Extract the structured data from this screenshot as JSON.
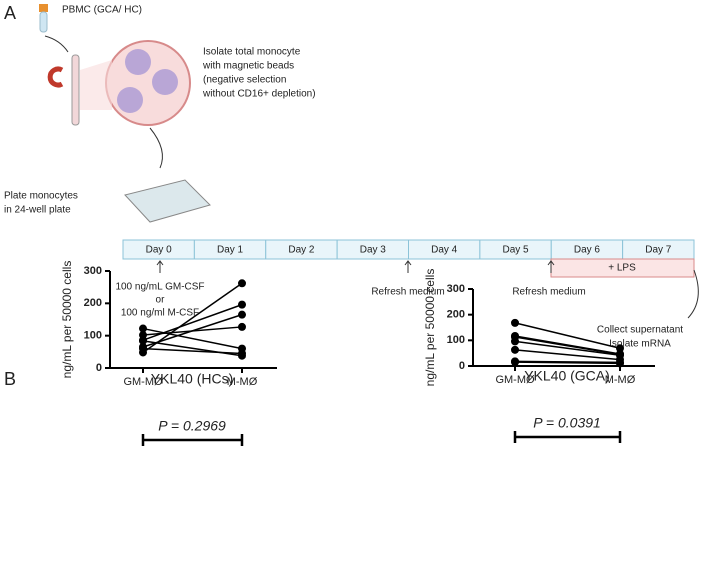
{
  "panel_labels": [
    "A",
    "B"
  ],
  "diagram": {
    "pbmc": "PBMC (GCA/ HC)",
    "isolate": [
      "Isolate total monocyte",
      "with magnetic beads",
      "(negative selection",
      "without CD16+ depletion)"
    ],
    "plate": [
      "Plate monocytes",
      "in 24-well plate"
    ],
    "days": [
      "Day 0",
      "Day 1",
      "Day 2",
      "Day 3",
      "Day 4",
      "Day 5",
      "Day 6",
      "Day 7"
    ],
    "lps": "+ LPS",
    "day0_note": [
      "100 ng/mL GM-CSF",
      "or",
      "100 ng/ml M-CSF"
    ],
    "refresh": [
      "Refresh medium",
      "Refresh medium"
    ],
    "collect": [
      "Collect supernatant",
      "Isolate mRNA"
    ]
  },
  "chart_data": [
    {
      "type": "paired",
      "title": "YKL40 (HCs)",
      "annotation": "P = 0.2969",
      "y_label": "ng/mL per 50000 cells",
      "categories": [
        "GM-MØ",
        "M-MØ"
      ],
      "ylim": [
        0,
        300
      ],
      "yticks": [
        0,
        100,
        200,
        300
      ],
      "color": "#000000",
      "series": [
        {
          "values": [
            48,
            262
          ]
        },
        {
          "values": [
            86,
            196
          ]
        },
        {
          "values": [
            65,
            165
          ]
        },
        {
          "values": [
            102,
            127
          ]
        },
        {
          "values": [
            122,
            60
          ]
        },
        {
          "values": [
            84,
            38
          ]
        },
        {
          "values": [
            60,
            45
          ]
        }
      ]
    },
    {
      "type": "paired",
      "title": "YKL40 (GCA)",
      "annotation": "P = 0.0391",
      "y_label": "ng/mL per 50000 cells",
      "categories": [
        "GM-MØ",
        "M-MØ"
      ],
      "ylim": [
        0,
        300
      ],
      "yticks": [
        0,
        100,
        200,
        300
      ],
      "color": "#000000",
      "series": [
        {
          "values": [
            168,
            69
          ]
        },
        {
          "values": [
            117,
            47
          ]
        },
        {
          "values": [
            113,
            45
          ]
        },
        {
          "values": [
            96,
            42
          ]
        },
        {
          "values": [
            63,
            25
          ]
        },
        {
          "values": [
            18,
            14
          ]
        },
        {
          "values": [
            15,
            10
          ]
        }
      ]
    }
  ]
}
